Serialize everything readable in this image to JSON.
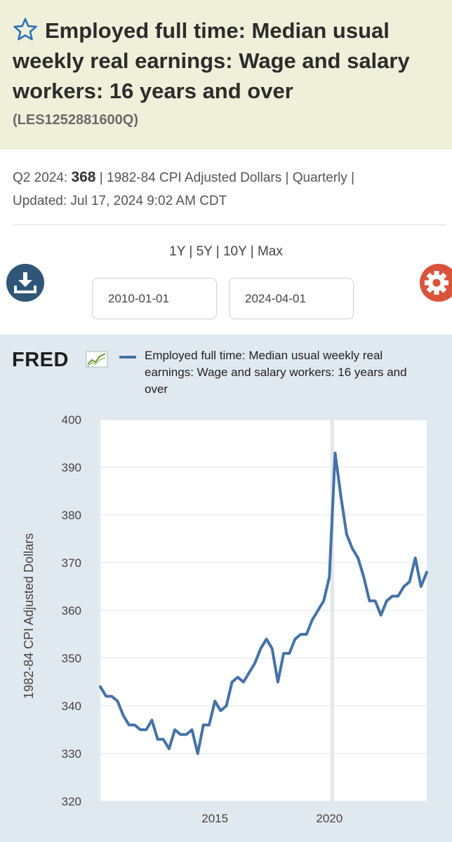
{
  "header": {
    "title": "Employed full time: Median usual weekly real earnings: Wage and salary workers: 16 years and over",
    "series_id": "(LES1252881600Q)"
  },
  "meta": {
    "period_label": "Q2 2024:",
    "value": "368",
    "units": "| 1982-84 CPI Adjusted Dollars | Quarterly |",
    "updated_label": "Updated:",
    "updated_value": "Jul 17, 2024 9:02 AM CDT"
  },
  "controls": {
    "ranges": [
      "1Y",
      "5Y",
      "10Y",
      "Max"
    ],
    "start_date": "2010-01-01",
    "end_date": "2024-04-01"
  },
  "branding": {
    "logo": "FRED"
  },
  "colors": {
    "accent": "#4572a7",
    "download": "#2f5677",
    "settings": "#d9533a",
    "panel": "#e1e9f0"
  },
  "icons": {
    "favorite": "star-icon",
    "download": "download-icon",
    "settings": "gear-icon"
  },
  "chart_data": {
    "type": "line",
    "title": "",
    "ylabel": "1982-84 CPI Adjusted Dollars",
    "xlabel": "",
    "ylim": [
      320,
      400
    ],
    "xlim": [
      2010.0,
      2024.25
    ],
    "yticks": [
      320,
      330,
      340,
      350,
      360,
      370,
      380,
      390,
      400
    ],
    "xticks": [
      2015,
      2020
    ],
    "grid": true,
    "legend_position": "top",
    "recession_markers": [
      2020.125
    ],
    "series": [
      {
        "name": "Employed full time: Median usual weekly real earnings: Wage and salary workers: 16 years and over",
        "color": "#4572a7",
        "x": [
          2010.0,
          2010.25,
          2010.5,
          2010.75,
          2011.0,
          2011.25,
          2011.5,
          2011.75,
          2012.0,
          2012.25,
          2012.5,
          2012.75,
          2013.0,
          2013.25,
          2013.5,
          2013.75,
          2014.0,
          2014.25,
          2014.5,
          2014.75,
          2015.0,
          2015.25,
          2015.5,
          2015.75,
          2016.0,
          2016.25,
          2016.5,
          2016.75,
          2017.0,
          2017.25,
          2017.5,
          2017.75,
          2018.0,
          2018.25,
          2018.5,
          2018.75,
          2019.0,
          2019.25,
          2019.5,
          2019.75,
          2020.0,
          2020.25,
          2020.5,
          2020.75,
          2021.0,
          2021.25,
          2021.5,
          2021.75,
          2022.0,
          2022.25,
          2022.5,
          2022.75,
          2023.0,
          2023.25,
          2023.5,
          2023.75,
          2024.0,
          2024.25
        ],
        "values": [
          344,
          342,
          342,
          341,
          338,
          336,
          336,
          335,
          335,
          337,
          333,
          333,
          331,
          335,
          334,
          334,
          335,
          330,
          336,
          336,
          341,
          339,
          340,
          345,
          346,
          345,
          347,
          349,
          352,
          354,
          352,
          345,
          351,
          351,
          354,
          355,
          355,
          358,
          360,
          362,
          367,
          393,
          384,
          376,
          373,
          371,
          367,
          362,
          362,
          359,
          362,
          363,
          363,
          365,
          366,
          371,
          365,
          368
        ]
      }
    ]
  }
}
